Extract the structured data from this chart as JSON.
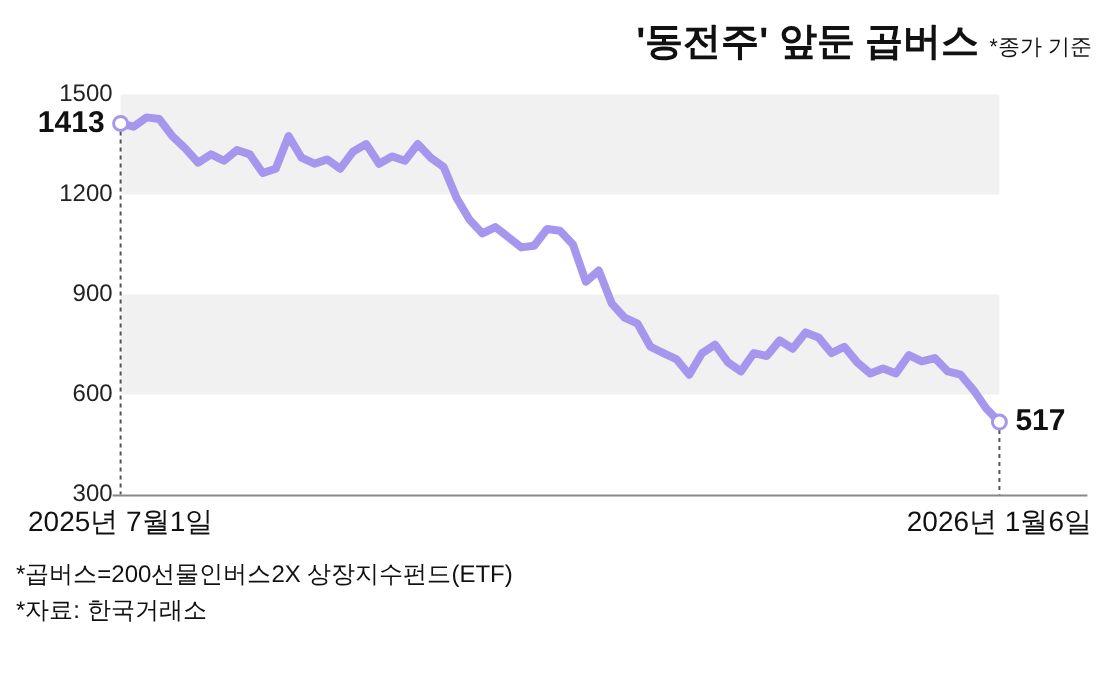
{
  "chart_data": {
    "type": "line",
    "title": "'동전주' 앞둔 곱버스",
    "subtitle": "*종가 기준",
    "annotations": [
      "*곱버스=200선물인버스2X 상장지수펀드(ETF)",
      "*자료: 한국거래소"
    ],
    "categories": [
      "2025년 7월1일",
      null,
      null,
      null,
      null,
      null,
      null,
      null,
      null,
      null,
      null,
      null,
      null,
      null,
      null,
      null,
      null,
      null,
      null,
      null,
      null,
      null,
      null,
      null,
      null,
      null,
      null,
      null,
      null,
      null,
      null,
      null,
      null,
      null,
      null,
      null,
      null,
      null,
      null,
      null,
      null,
      null,
      null,
      null,
      null,
      null,
      null,
      null,
      null,
      null,
      null,
      null,
      null,
      null,
      null,
      null,
      null,
      null,
      null,
      null,
      null,
      null,
      null,
      null,
      null,
      null,
      null,
      null,
      "2026년 1월6일"
    ],
    "series": [
      {
        "color": "#a796ee",
        "values": [
          1413,
          1403,
          1431,
          1426,
          1375,
          1338,
          1295,
          1320,
          1301,
          1333,
          1320,
          1264,
          1277,
          1375,
          1310,
          1292,
          1305,
          1277,
          1329,
          1351,
          1292,
          1314,
          1301,
          1351,
          1310,
          1282,
          1189,
          1124,
          1083,
          1102,
          1072,
          1041,
          1046,
          1096,
          1091,
          1050,
          938,
          972,
          873,
          830,
          812,
          743,
          724,
          706,
          659,
          724,
          749,
          696,
          669,
          724,
          715,
          762,
          737,
          786,
          771,
          724,
          743,
          696,
          663,
          678,
          663,
          718,
          699,
          709,
          669,
          659,
          613,
          557,
          517
        ],
        "value_labels": [
          "1413",
          null,
          null,
          null,
          null,
          null,
          null,
          null,
          null,
          null,
          null,
          null,
          null,
          null,
          null,
          null,
          null,
          null,
          null,
          null,
          null,
          null,
          null,
          null,
          null,
          null,
          null,
          null,
          null,
          null,
          null,
          null,
          null,
          null,
          null,
          null,
          null,
          null,
          null,
          null,
          null,
          null,
          null,
          null,
          null,
          null,
          null,
          null,
          null,
          null,
          null,
          null,
          null,
          null,
          null,
          null,
          null,
          null,
          null,
          null,
          null,
          null,
          null,
          null,
          null,
          null,
          null,
          null,
          "517"
        ]
      }
    ],
    "ylim": [
      300,
      1500
    ],
    "yticks": [
      300,
      600,
      900,
      1200,
      1500
    ],
    "grid": false,
    "legend": false,
    "line_style": "solid",
    "bands": [
      {
        "axis": "y",
        "from": 1200,
        "to": 1500,
        "color": "#f1f1f1"
      },
      {
        "axis": "y",
        "from": 600,
        "to": 900,
        "color": "#f1f1f1"
      }
    ],
    "ref_lines": [
      {
        "axis": "x",
        "value": "2025년 7월1일",
        "line_style": "dotted",
        "color": "#555555"
      },
      {
        "axis": "x",
        "value": "2026년 1월6일",
        "line_style": "dotted",
        "color": "#555555"
      }
    ]
  }
}
